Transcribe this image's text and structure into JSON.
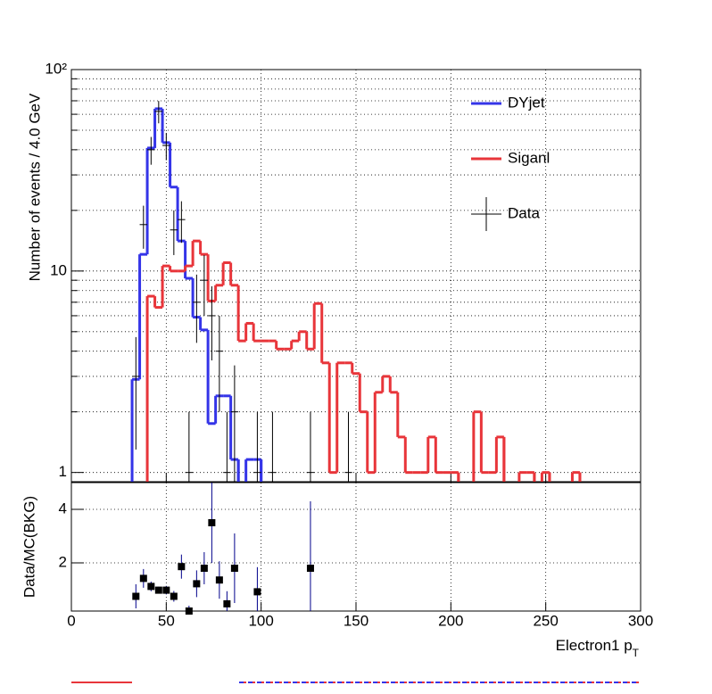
{
  "chart_data": [
    {
      "type": "histogram",
      "ylabel": "Number of events / 4.0 GeV",
      "bins": [
        32,
        36,
        40,
        44,
        48,
        52,
        56,
        60,
        64,
        68,
        72,
        76,
        80,
        84,
        88,
        92,
        96,
        100,
        104,
        108,
        112,
        116,
        120,
        124,
        128,
        132,
        136,
        140,
        144,
        148,
        152,
        156,
        160,
        164,
        168,
        172,
        176,
        180,
        184,
        188,
        192,
        196,
        200,
        204,
        208,
        212,
        216,
        220,
        224,
        228,
        232,
        236,
        240,
        244,
        248,
        252,
        256,
        260,
        264,
        268,
        272
      ],
      "series": [
        {
          "name": "DYjet",
          "color": "#3434e8",
          "values": [
            2.9,
            12.1,
            40.8,
            63.9,
            43.4,
            26.1,
            14.1,
            9.2,
            5.9,
            5.1,
            1.75,
            2.4,
            2.4,
            1.16,
            null,
            1.16,
            1.16,
            null,
            null,
            null,
            null,
            null,
            null,
            null,
            null,
            null,
            null,
            null,
            null,
            null,
            null,
            null,
            null,
            null,
            null,
            null,
            null,
            null,
            null,
            null,
            null,
            null,
            null,
            null,
            null,
            null,
            null,
            null,
            null,
            null,
            null,
            null,
            null,
            null,
            null,
            null,
            null,
            null,
            null,
            null
          ]
        },
        {
          "name": "Siganl",
          "color": "#e8353a",
          "values": [
            null,
            null,
            7.5,
            6.6,
            10.6,
            10.0,
            10.0,
            10.6,
            14.1,
            12.1,
            7.1,
            8.5,
            11.0,
            8.5,
            4.5,
            5.5,
            4.5,
            4.5,
            4.5,
            4.1,
            4.1,
            4.5,
            5.0,
            4.1,
            6.9,
            3.5,
            1.0,
            3.5,
            3.5,
            3.1,
            2.0,
            1.0,
            2.5,
            3.0,
            2.5,
            1.5,
            1.0,
            1.0,
            1.0,
            1.5,
            1.0,
            1.0,
            1.0,
            null,
            null,
            2.0,
            1.0,
            1.0,
            1.5,
            null,
            null,
            1.0,
            1.0,
            null,
            1.0,
            null,
            null,
            null,
            1.0,
            null
          ]
        }
      ],
      "data": {
        "name": "Data",
        "color": "#000000",
        "x": [
          34,
          38,
          42,
          46,
          50,
          54,
          58,
          62,
          66,
          70,
          74,
          78,
          82,
          86,
          98,
          106,
          126,
          146
        ],
        "values": [
          3,
          17,
          40,
          62,
          42,
          16,
          18,
          1,
          7,
          9,
          6,
          4,
          1,
          2,
          1,
          1,
          1,
          1
        ],
        "errors": [
          1.7,
          4.1,
          6.3,
          7.9,
          6.5,
          4,
          4.2,
          1,
          2.6,
          3,
          2.4,
          2,
          1,
          1.4,
          1,
          1,
          1,
          1
        ]
      },
      "xlim": [
        0,
        300
      ],
      "ylim": [
        0.9,
        100
      ],
      "log_y": true,
      "yticks": [
        {
          "value": 1,
          "label": "1"
        },
        {
          "value": 10,
          "label": "10"
        },
        {
          "value": 100,
          "label": "10²"
        }
      ],
      "yminorticks": [
        2,
        3,
        4,
        5,
        6,
        7,
        8,
        9,
        20,
        30,
        40,
        50,
        60,
        70,
        80,
        90
      ],
      "grid": true
    },
    {
      "type": "scatter",
      "ylabel": "Data/MC(BKG)",
      "xlabel": {
        "text": "Electron1 p",
        "subscript": "T"
      },
      "x": [
        34,
        38,
        42,
        46,
        50,
        54,
        58,
        62,
        66,
        70,
        74,
        78,
        82,
        86,
        98,
        126
      ],
      "values": [
        0.75,
        1.42,
        1.12,
        0.98,
        0.98,
        0.75,
        1.86,
        0.2,
        1.22,
        1.8,
        3.5,
        1.36,
        0.47,
        1.8,
        0.92,
        1.8
      ],
      "errors": [
        0.45,
        0.35,
        0.18,
        0.13,
        0.16,
        0.2,
        0.45,
        0.2,
        0.5,
        0.6,
        1.5,
        0.7,
        0.47,
        1.3,
        0.92,
        2.5
      ],
      "color": "#000000",
      "xlim": [
        0,
        300
      ],
      "ylim": [
        0.2,
        5
      ],
      "xticks": [
        0,
        50,
        100,
        150,
        200,
        250,
        300
      ],
      "yticks": [
        2,
        4
      ],
      "grid": true
    }
  ]
}
